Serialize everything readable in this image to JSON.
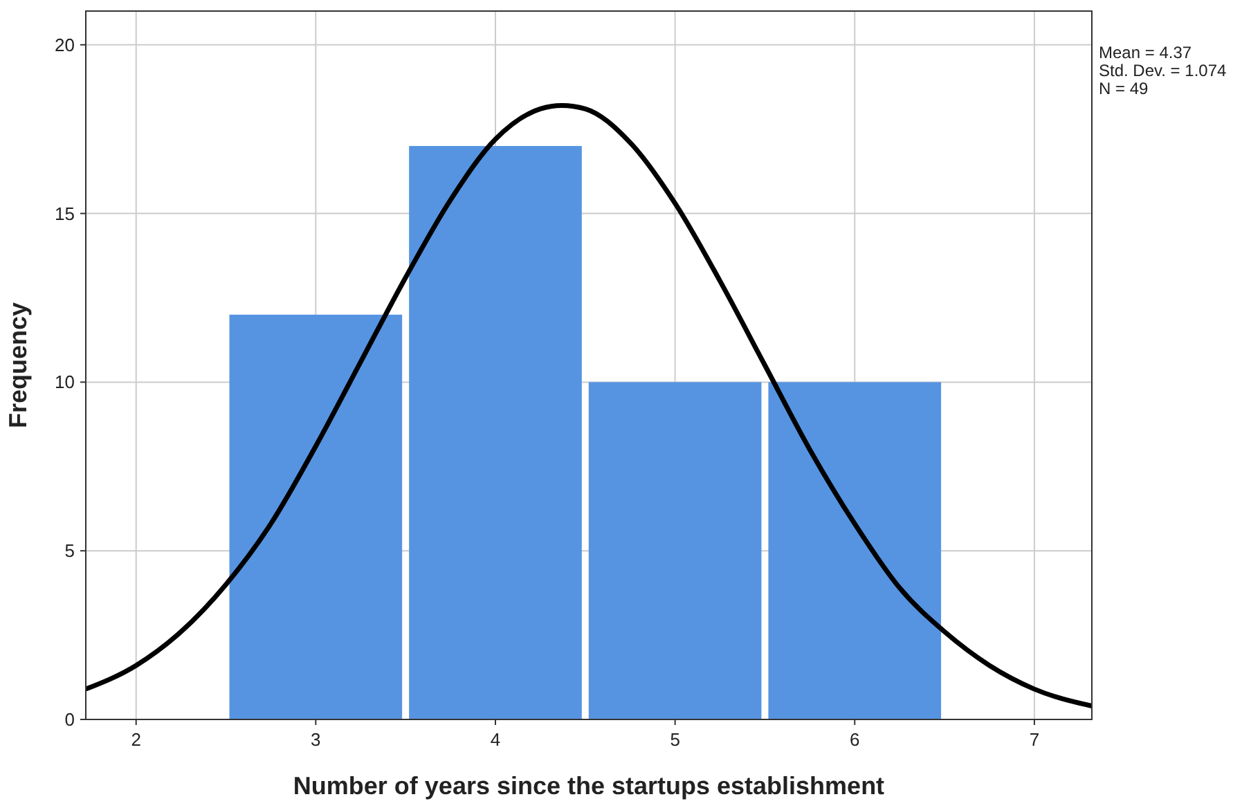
{
  "chart_data": {
    "type": "histogram",
    "xlabel": "Number of years since the startups establishment",
    "ylabel": "Frequency",
    "annotations": [
      "Mean = 4.37",
      "Std. Dev. = 1.074",
      "N = 49"
    ],
    "xlim": [
      1.72,
      7.32
    ],
    "xticks": [
      2,
      3,
      4,
      5,
      6,
      7
    ],
    "ylim": [
      0,
      21
    ],
    "yticks": [
      0,
      5,
      10,
      15,
      20
    ],
    "grid": true,
    "series": [
      {
        "color": "#5694e2",
        "bins": [
          2.5,
          3.5,
          4.5,
          5.5,
          6.5
        ],
        "values": [
          12,
          17,
          10,
          10
        ]
      },
      {
        "type": "line",
        "color": "#000000",
        "x": [
          1.72,
          2,
          2.25,
          2.5,
          2.75,
          3,
          3.25,
          3.5,
          3.75,
          4,
          4.25,
          4.37,
          4.5,
          4.75,
          5,
          5.25,
          5.5,
          5.75,
          6,
          6.25,
          6.5,
          6.75,
          7,
          7.32
        ],
        "values": [
          0.9,
          1.6,
          2.6,
          4.0,
          5.8,
          8.1,
          10.6,
          13.1,
          15.4,
          17.2,
          18.1,
          18.2,
          18.1,
          17.1,
          15.3,
          13.0,
          10.5,
          8.0,
          5.8,
          3.9,
          2.6,
          1.6,
          0.9,
          0.4
        ]
      }
    ]
  }
}
